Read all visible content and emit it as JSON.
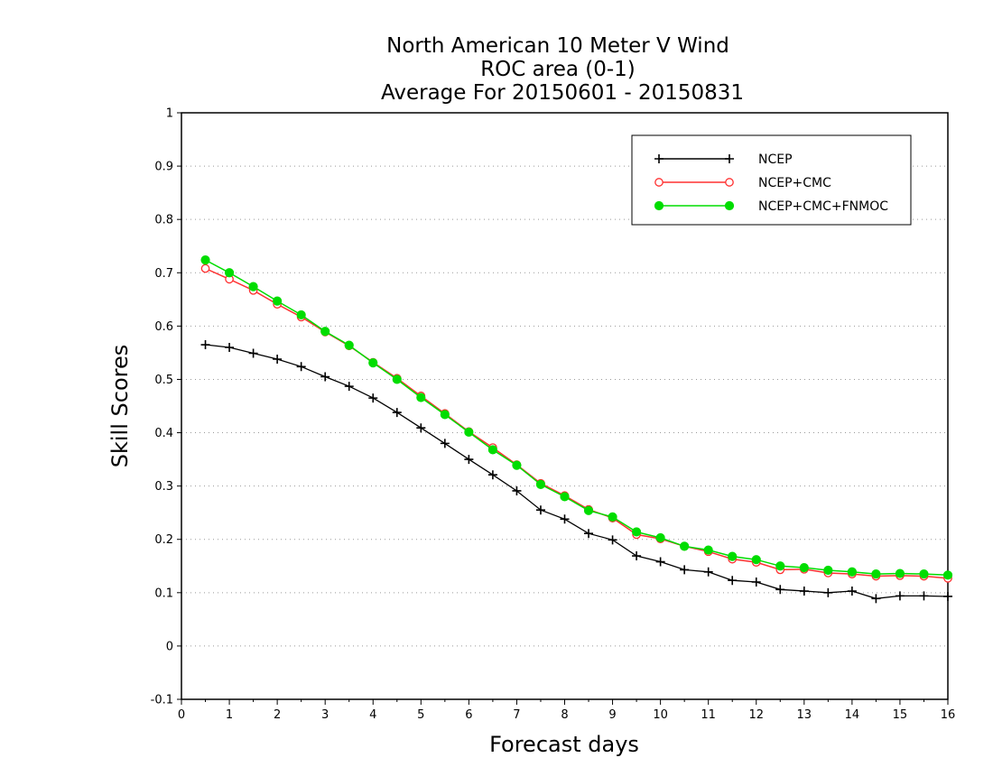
{
  "chart_data": {
    "type": "line",
    "title_lines": [
      "North American 10 Meter V Wind",
      "ROC area (0-1)",
      "Average For 20150601 - 20150831"
    ],
    "xlabel": "Forecast days",
    "ylabel": "Skill Scores",
    "xlim": [
      0,
      16
    ],
    "ylim": [
      -0.1,
      1
    ],
    "x_ticks": [
      "0",
      "1",
      "2",
      "3",
      "4",
      "5",
      "6",
      "7",
      "8",
      "9",
      "10",
      "11",
      "12",
      "13",
      "14",
      "15",
      "16"
    ],
    "y_ticks": [
      "-0.1",
      "0",
      "0.1",
      "0.2",
      "0.3",
      "0.4",
      "0.5",
      "0.6",
      "0.7",
      "0.8",
      "0.9",
      "1"
    ],
    "grid": "horizontal dotted",
    "legend_position": "top-right",
    "x": [
      0.5,
      1,
      1.5,
      2,
      2.5,
      3,
      3.5,
      4,
      4.5,
      5,
      5.5,
      6,
      6.5,
      7,
      7.5,
      8,
      8.5,
      9,
      9.5,
      10,
      10.5,
      11,
      11.5,
      12,
      12.5,
      13,
      13.5,
      14,
      14.5,
      15,
      15.5,
      16
    ],
    "series": [
      {
        "name": "NCEP",
        "color": "#000000",
        "marker": "plus",
        "values": [
          0.565,
          0.56,
          0.549,
          0.538,
          0.524,
          0.505,
          0.487,
          0.465,
          0.438,
          0.409,
          0.38,
          0.35,
          0.321,
          0.291,
          0.255,
          0.238,
          0.211,
          0.199,
          0.169,
          0.158,
          0.143,
          0.139,
          0.123,
          0.12,
          0.106,
          0.103,
          0.1,
          0.103,
          0.089,
          0.094,
          0.094,
          0.093
        ]
      },
      {
        "name": "NCEP+CMC",
        "color": "#ff3030",
        "marker": "open-circle",
        "values": [
          0.708,
          0.688,
          0.667,
          0.641,
          0.617,
          0.589,
          0.563,
          0.532,
          0.502,
          0.469,
          0.436,
          0.402,
          0.372,
          0.34,
          0.305,
          0.282,
          0.256,
          0.24,
          0.209,
          0.201,
          0.187,
          0.177,
          0.163,
          0.157,
          0.143,
          0.144,
          0.137,
          0.135,
          0.131,
          0.132,
          0.131,
          0.127
        ]
      },
      {
        "name": "NCEP+CMC+FNMOC",
        "color": "#00dd00",
        "marker": "filled-circle",
        "values": [
          0.724,
          0.7,
          0.674,
          0.647,
          0.621,
          0.59,
          0.564,
          0.531,
          0.5,
          0.466,
          0.434,
          0.401,
          0.368,
          0.339,
          0.303,
          0.28,
          0.254,
          0.242,
          0.214,
          0.203,
          0.187,
          0.18,
          0.168,
          0.162,
          0.15,
          0.147,
          0.142,
          0.139,
          0.135,
          0.136,
          0.135,
          0.133
        ]
      }
    ]
  }
}
